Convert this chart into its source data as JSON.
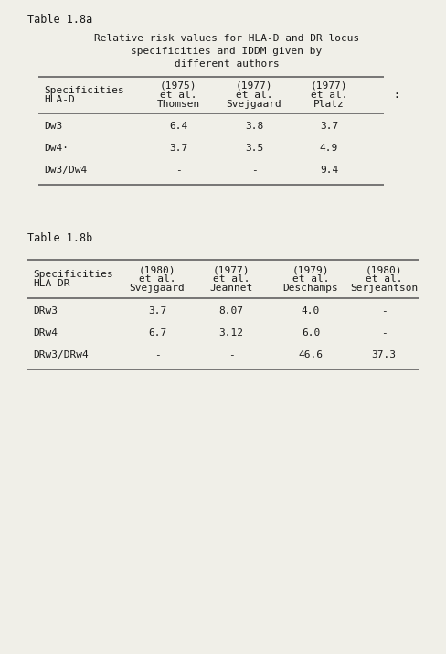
{
  "table_label_a": "Table 1.8a",
  "title_line1": "Relative risk values for HLA-D and DR locus",
  "title_line2": "specificities and IDDM given by",
  "title_line3": "different authors",
  "table_a": {
    "col_headers": [
      [
        "HLA-D",
        "Specificities"
      ],
      [
        "Thomsen",
        "et al.",
        "(1975)"
      ],
      [
        "Svejgaard",
        "et al.",
        "(1977)"
      ],
      [
        "Platz",
        "et al.",
        "(1977)"
      ]
    ],
    "rows": [
      [
        "Dw3",
        "6.4",
        "3.8",
        "3.7"
      ],
      [
        "Dw4·",
        "3.7",
        "3.5",
        "4.9"
      ],
      [
        "Dw3/Dw4",
        "-",
        "-",
        "9.4"
      ]
    ]
  },
  "table_label_b": "Table 1.8b",
  "table_b": {
    "col_headers": [
      [
        "HLA-DR",
        "Specificities"
      ],
      [
        "Svejgaard",
        "et al.",
        "(1980)"
      ],
      [
        "Jeannet",
        "et al.",
        "(1977)"
      ],
      [
        "Deschamps",
        "et al.",
        "(1979)"
      ],
      [
        "Serjeantson",
        "et al.",
        "(1980)"
      ]
    ],
    "rows": [
      [
        "DRw3",
        "3.7",
        "8.07",
        "4.0",
        "-"
      ],
      [
        "DRw4",
        "6.7",
        "3.12",
        "6.0",
        "-"
      ],
      [
        "DRw3/DRw4",
        "-",
        "-",
        "46.6",
        "37.3"
      ]
    ]
  },
  "bg_color": "#f0efe8",
  "text_color": "#1a1a1a",
  "line_color": "#555555",
  "font_size": 8.0,
  "label_font_size": 8.5,
  "title_font_size": 8.0
}
